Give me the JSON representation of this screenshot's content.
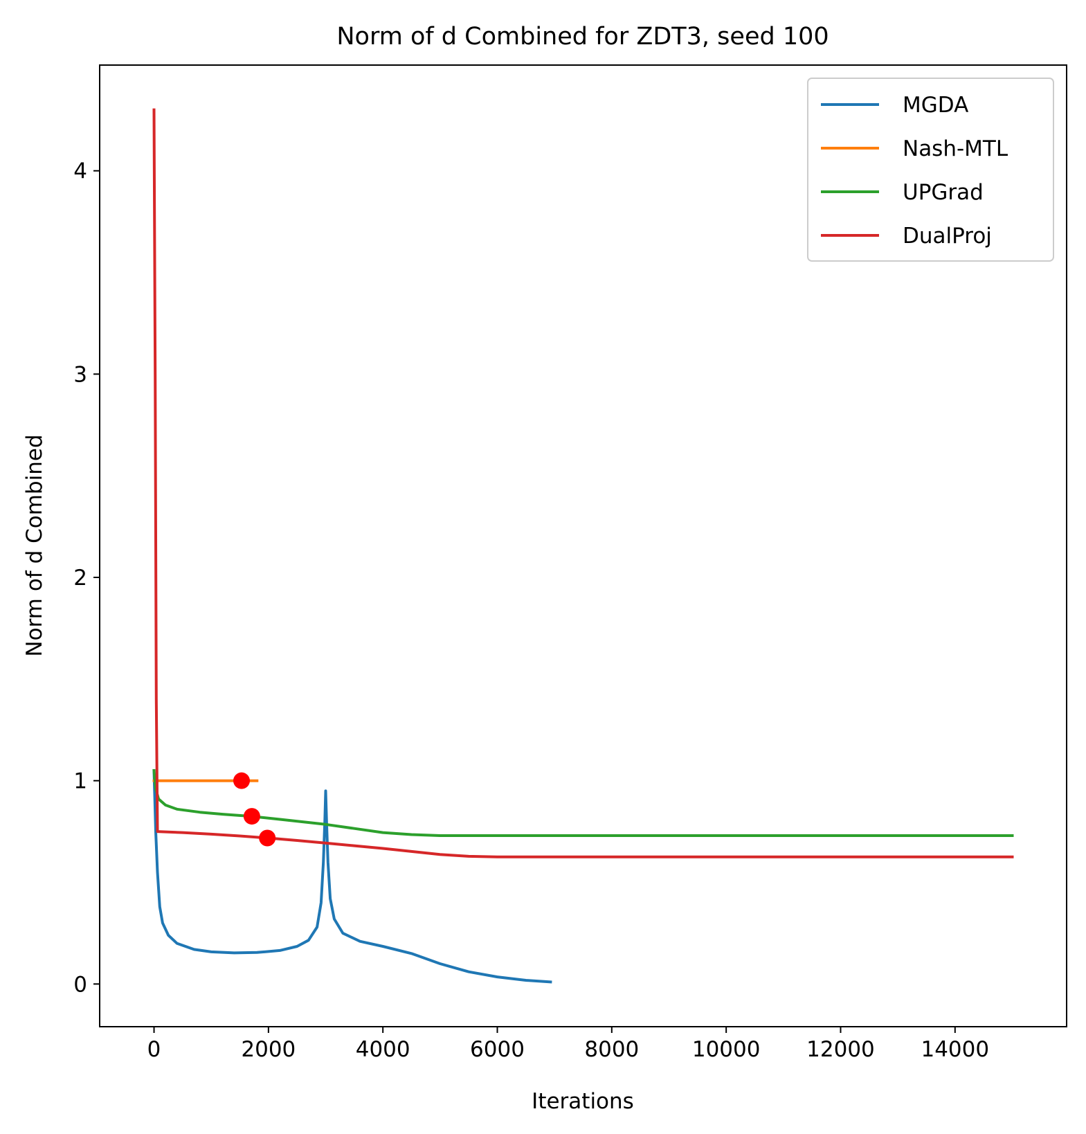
{
  "chart_data": {
    "type": "line",
    "title": "Norm of d Combined for ZDT3, seed 100",
    "xlabel": "Iterations",
    "ylabel": "Norm of d Combined",
    "xlim": [
      -950,
      15950
    ],
    "ylim": [
      -0.21,
      4.52
    ],
    "xticks": [
      0,
      2000,
      4000,
      6000,
      8000,
      10000,
      12000,
      14000
    ],
    "yticks": [
      0,
      1,
      2,
      3,
      4
    ],
    "grid": false,
    "legend_position": "top-right",
    "series": [
      {
        "name": "MGDA",
        "color": "#1f77b4",
        "points": [
          [
            0,
            1.05
          ],
          [
            30,
            0.75
          ],
          [
            60,
            0.55
          ],
          [
            100,
            0.38
          ],
          [
            150,
            0.3
          ],
          [
            250,
            0.24
          ],
          [
            400,
            0.2
          ],
          [
            700,
            0.17
          ],
          [
            1000,
            0.158
          ],
          [
            1400,
            0.153
          ],
          [
            1800,
            0.155
          ],
          [
            2200,
            0.165
          ],
          [
            2500,
            0.185
          ],
          [
            2700,
            0.215
          ],
          [
            2850,
            0.28
          ],
          [
            2920,
            0.4
          ],
          [
            2960,
            0.6
          ],
          [
            2985,
            0.8
          ],
          [
            3000,
            0.95
          ],
          [
            3015,
            0.8
          ],
          [
            3040,
            0.6
          ],
          [
            3080,
            0.42
          ],
          [
            3150,
            0.32
          ],
          [
            3300,
            0.25
          ],
          [
            3600,
            0.21
          ],
          [
            4000,
            0.185
          ],
          [
            4500,
            0.15
          ],
          [
            5000,
            0.1
          ],
          [
            5500,
            0.06
          ],
          [
            6000,
            0.035
          ],
          [
            6500,
            0.018
          ],
          [
            6930,
            0.01
          ]
        ]
      },
      {
        "name": "Nash-MTL",
        "color": "#ff7f0e",
        "points": [
          [
            0,
            1.0
          ],
          [
            1800,
            1.0
          ]
        ]
      },
      {
        "name": "UPGrad",
        "color": "#2ca02c",
        "points": [
          [
            0,
            1.05
          ],
          [
            30,
            0.96
          ],
          [
            80,
            0.91
          ],
          [
            200,
            0.88
          ],
          [
            400,
            0.86
          ],
          [
            800,
            0.845
          ],
          [
            1200,
            0.835
          ],
          [
            1700,
            0.825
          ],
          [
            2200,
            0.81
          ],
          [
            3000,
            0.785
          ],
          [
            3500,
            0.765
          ],
          [
            4000,
            0.745
          ],
          [
            4500,
            0.735
          ],
          [
            5000,
            0.73
          ],
          [
            6000,
            0.73
          ],
          [
            15000,
            0.73
          ]
        ]
      },
      {
        "name": "DualProj",
        "color": "#d62728",
        "points": [
          [
            0,
            4.3
          ],
          [
            20,
            3.0
          ],
          [
            40,
            1.4
          ],
          [
            60,
            0.75
          ],
          [
            500,
            0.745
          ],
          [
            1000,
            0.737
          ],
          [
            1500,
            0.728
          ],
          [
            2000,
            0.718
          ],
          [
            2500,
            0.706
          ],
          [
            3000,
            0.693
          ],
          [
            3500,
            0.68
          ],
          [
            4000,
            0.667
          ],
          [
            4500,
            0.652
          ],
          [
            5000,
            0.637
          ],
          [
            5500,
            0.628
          ],
          [
            6000,
            0.625
          ],
          [
            15000,
            0.625
          ]
        ]
      }
    ],
    "markers": {
      "color": "#ff0000",
      "points": [
        [
          1530,
          1.0
        ],
        [
          1710,
          0.825
        ],
        [
          1980,
          0.718
        ]
      ]
    }
  }
}
